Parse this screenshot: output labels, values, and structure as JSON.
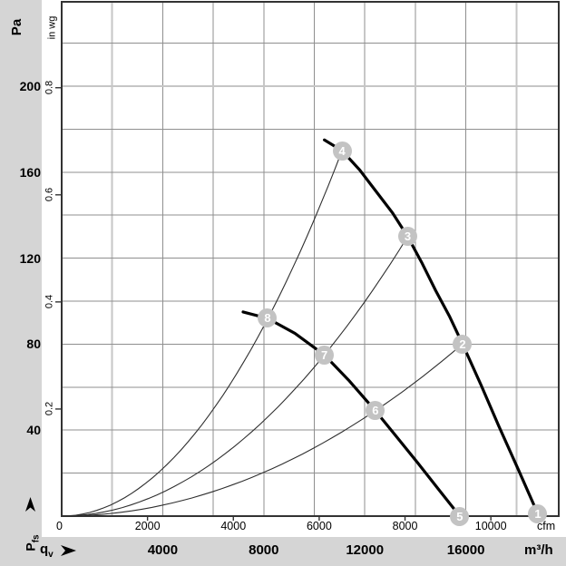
{
  "colors": {
    "canvas_band": "#d5d5d5",
    "plot_background": "#ffffff",
    "grid": "#8f8f8f",
    "grid_light": "#c6c6c6",
    "frame": "#333333",
    "fan_curve": "#000000",
    "system_curve": "#2e2e2e",
    "marker_fill": "#c3c3c3",
    "marker_number": "#ffffff",
    "text": "#000000"
  },
  "axes": {
    "left_primary": {
      "unit": "Pa",
      "ticks": [
        200,
        160,
        120,
        80,
        40
      ]
    },
    "left_secondary": {
      "unit": "in wg",
      "ticks": [
        0.8,
        0.6,
        0.4,
        0.2
      ]
    },
    "left_axis_label": {
      "main": "P",
      "sub": "fs"
    },
    "bottom_primary": {
      "unit": "m³/h",
      "label_main": "q",
      "label_sub": "v",
      "ticks": [
        4000,
        8000,
        12000,
        16000
      ]
    },
    "bottom_secondary": {
      "unit": "cfm",
      "origin_label": "0",
      "ticks": [
        2000,
        4000,
        6000,
        8000,
        10000
      ]
    }
  },
  "chart_data": {
    "type": "line",
    "x_axis": {
      "label": "qv",
      "unit_primary": "m³/h",
      "unit_secondary": "cfm",
      "range_m3h": [
        0,
        19700
      ],
      "ticks_m3h": [
        4000,
        8000,
        12000,
        16000
      ],
      "ticks_cfm": [
        2000,
        4000,
        6000,
        8000,
        10000
      ],
      "grid_step_m3h": 2000,
      "light_grid_m3h": [
        2000,
        18000
      ]
    },
    "y_axis": {
      "label": "Pfs",
      "unit_primary": "Pa",
      "unit_secondary": "in wg",
      "range_pa": [
        0,
        239
      ],
      "ticks_pa": [
        40,
        80,
        120,
        160,
        200
      ],
      "ticks_inwg": [
        0.2,
        0.4,
        0.6,
        0.8
      ],
      "grid_step_pa": 20,
      "light_grid_pa": [
        200
      ]
    },
    "fan_curves": [
      {
        "name": "fan-curve-high-speed",
        "points_q_p": [
          [
            10400,
            175
          ],
          [
            11100,
            170
          ],
          [
            11800,
            161
          ],
          [
            12450,
            151
          ],
          [
            13100,
            141
          ],
          [
            13700,
            130
          ],
          [
            14250,
            118
          ],
          [
            14800,
            105
          ],
          [
            15350,
            93
          ],
          [
            15870,
            80
          ],
          [
            16600,
            61
          ],
          [
            17300,
            42
          ],
          [
            18100,
            21
          ],
          [
            18850,
            1
          ]
        ]
      },
      {
        "name": "fan-curve-low-speed",
        "points_q_p": [
          [
            7180,
            95
          ],
          [
            8150,
            92
          ],
          [
            9230,
            85
          ],
          [
            10400,
            75
          ],
          [
            11380,
            63
          ],
          [
            12420,
            49
          ],
          [
            13250,
            37
          ],
          [
            14080,
            25
          ],
          [
            14950,
            12
          ],
          [
            15760,
            0
          ]
        ]
      }
    ],
    "system_curves": [
      {
        "name": "system-curve-A",
        "k_pa_per_m3h2": 1.38e-06,
        "q_end": 11100
      },
      {
        "name": "system-curve-B",
        "k_pa_per_m3h2": 6.93e-07,
        "q_end": 13700
      },
      {
        "name": "system-curve-C",
        "k_pa_per_m3h2": 3.18e-07,
        "q_end": 15870
      }
    ],
    "markers": [
      {
        "label": "1",
        "q": 18850,
        "p": 1
      },
      {
        "label": "2",
        "q": 15870,
        "p": 80
      },
      {
        "label": "3",
        "q": 13700,
        "p": 130
      },
      {
        "label": "4",
        "q": 11100,
        "p": 170
      },
      {
        "label": "5",
        "q": 15760,
        "p": 0
      },
      {
        "label": "6",
        "q": 12420,
        "p": 49
      },
      {
        "label": "7",
        "q": 10400,
        "p": 75
      },
      {
        "label": "8",
        "q": 8150,
        "p": 92
      }
    ]
  }
}
